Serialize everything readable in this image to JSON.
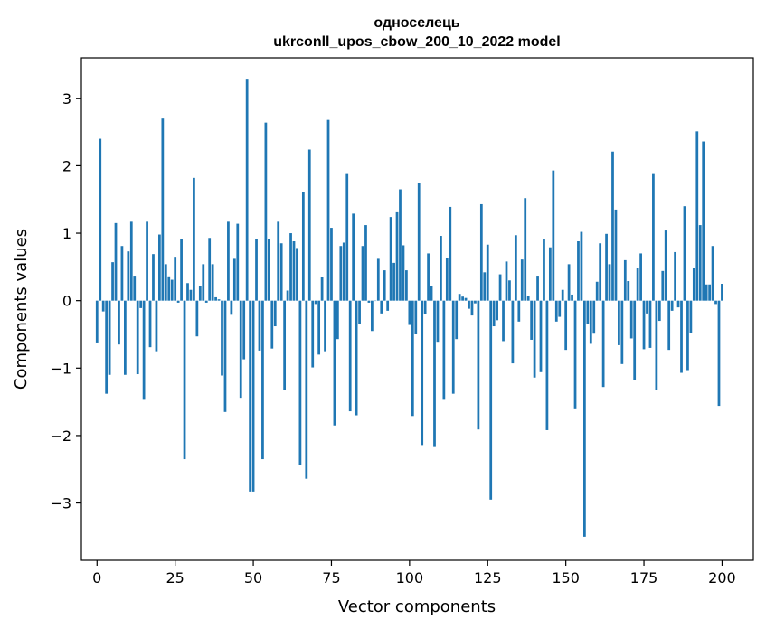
{
  "chart_data": {
    "type": "bar",
    "title": "односелець",
    "subtitle": "ukrconll_upos_cbow_200_10_2022 model",
    "xlabel": "Vector components",
    "ylabel": "Components values",
    "xlim": [
      -5,
      210
    ],
    "ylim": [
      -3.85,
      3.6
    ],
    "xticks": [
      0,
      25,
      50,
      75,
      100,
      125,
      150,
      175,
      200
    ],
    "yticks": [
      -3,
      -2,
      -1,
      0,
      1,
      2,
      3
    ],
    "grid": false,
    "bar_color": "#1f77b4",
    "values": [
      -0.62,
      2.4,
      -0.16,
      -1.38,
      -1.1,
      0.57,
      1.15,
      -0.65,
      0.81,
      -1.1,
      0.73,
      1.17,
      0.37,
      -1.09,
      -0.11,
      -1.47,
      1.17,
      -0.69,
      0.69,
      -0.75,
      0.98,
      2.7,
      0.54,
      0.36,
      0.31,
      0.65,
      -0.03,
      0.92,
      -2.35,
      0.26,
      0.16,
      1.82,
      -0.53,
      0.21,
      0.54,
      -0.03,
      0.93,
      0.54,
      0.05,
      0.02,
      -1.11,
      -1.65,
      1.17,
      -0.21,
      0.62,
      1.14,
      -1.44,
      -0.87,
      3.29,
      -2.83,
      -2.83,
      0.92,
      -0.74,
      -2.35,
      2.64,
      0.92,
      -0.71,
      -0.38,
      1.17,
      0.85,
      -1.32,
      0.15,
      1.0,
      0.88,
      0.78,
      -2.43,
      1.61,
      -2.64,
      2.24,
      -0.99,
      -0.05,
      -0.8,
      0.35,
      -0.75,
      2.68,
      1.08,
      -1.85,
      -0.57,
      0.81,
      0.86,
      1.89,
      -1.64,
      1.29,
      -1.7,
      -0.34,
      0.81,
      1.12,
      -0.03,
      -0.45,
      0.0,
      0.62,
      -0.19,
      0.45,
      -0.15,
      1.24,
      0.56,
      1.31,
      1.65,
      0.82,
      0.45,
      -0.36,
      -1.71,
      -0.5,
      1.75,
      -2.14,
      -0.2,
      0.7,
      0.22,
      -2.17,
      -0.61,
      0.96,
      -1.47,
      0.63,
      1.39,
      -1.38,
      -0.57,
      0.1,
      0.06,
      0.04,
      -0.12,
      -0.22,
      -0.04,
      -1.91,
      1.43,
      0.42,
      0.83,
      -2.95,
      -0.38,
      -0.29,
      0.39,
      -0.6,
      0.58,
      0.3,
      -0.93,
      0.97,
      -0.31,
      0.61,
      1.52,
      0.07,
      -0.58,
      -1.14,
      0.37,
      -1.06,
      0.91,
      -1.92,
      0.79,
      1.93,
      -0.31,
      -0.24,
      0.16,
      -0.73,
      0.54,
      0.09,
      -1.61,
      0.88,
      1.02,
      -3.5,
      -0.35,
      -0.64,
      -0.49,
      0.28,
      0.85,
      -1.28,
      0.99,
      0.54,
      2.21,
      1.35,
      -0.66,
      -0.94,
      0.6,
      0.29,
      -0.56,
      -1.17,
      0.48,
      0.7,
      -0.72,
      -0.19,
      -0.7,
      1.89,
      -1.33,
      -0.3,
      0.44,
      1.04,
      -0.73,
      -0.15,
      0.72,
      -0.1,
      -1.07,
      1.4,
      -1.03,
      -0.48,
      0.48,
      2.51,
      1.12,
      2.36,
      0.24,
      0.24,
      0.81,
      -0.05,
      -1.56,
      0.25
    ]
  }
}
